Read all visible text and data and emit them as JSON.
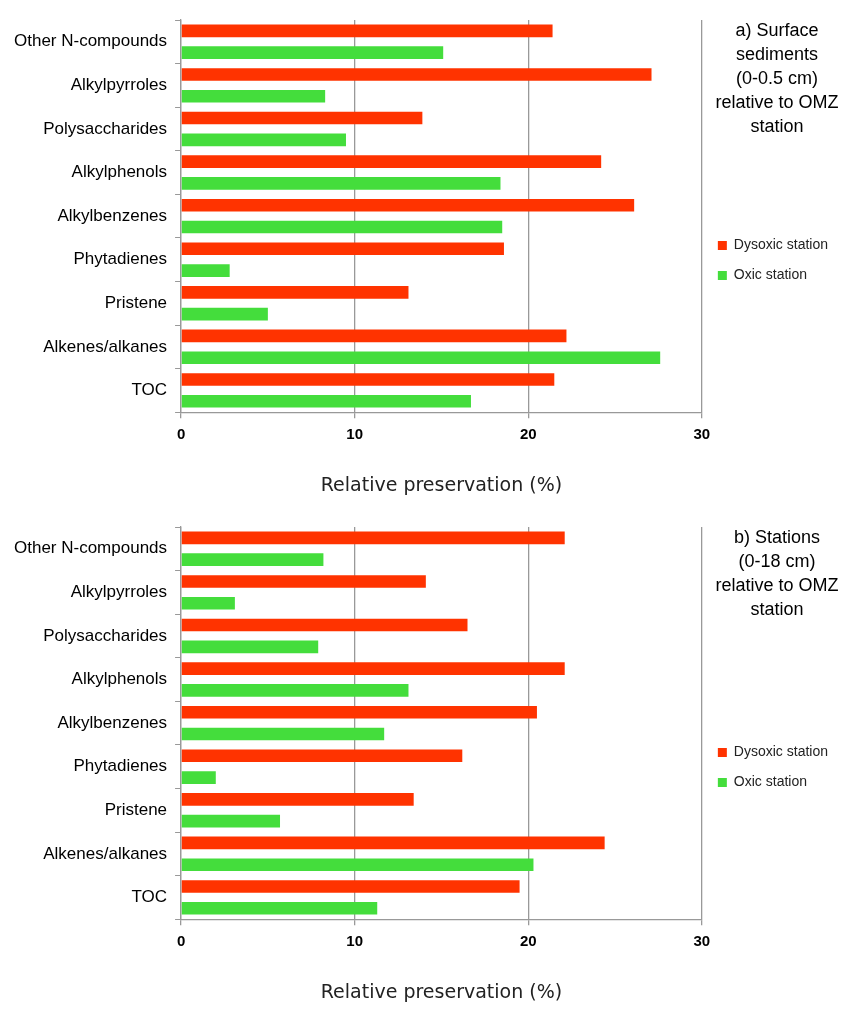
{
  "chart_data": [
    {
      "type": "bar",
      "orientation": "horizontal",
      "title": "a) Surface sediments (0-0.5 cm) relative to OMZ station",
      "xlabel": "Relative preservation (%)",
      "categories": [
        "Other N-compounds",
        "Alkylpyrroles",
        "Polysaccharides",
        "Alkylphenols",
        "Alkylbenzenes",
        "Phytadienes",
        "Pristene",
        "Alkenes/alkanes",
        "TOC"
      ],
      "series": [
        {
          "name": "Dysoxic station",
          "color": "#ff3300",
          "values": [
            21.4,
            27.1,
            13.9,
            24.2,
            26.1,
            18.6,
            13.1,
            22.2,
            21.5
          ]
        },
        {
          "name": "Oxic station",
          "color": "#44dd3c",
          "values": [
            15.1,
            8.3,
            9.5,
            18.4,
            18.5,
            2.8,
            5.0,
            27.6,
            16.7
          ]
        }
      ],
      "xlim": [
        0,
        30
      ],
      "xticks": [
        0,
        10,
        20,
        30
      ],
      "grid": "x",
      "legend": "right"
    },
    {
      "type": "bar",
      "orientation": "horizontal",
      "title": "b) Stations (0-18 cm) relative to OMZ station",
      "xlabel": "Relative preservation (%)",
      "categories": [
        "Other N-compounds",
        "Alkylpyrroles",
        "Polysaccharides",
        "Alkylphenols",
        "Alkylbenzenes",
        "Phytadienes",
        "Pristene",
        "Alkenes/alkanes",
        "TOC"
      ],
      "series": [
        {
          "name": "Dysoxic station",
          "color": "#ff3300",
          "values": [
            22.1,
            14.1,
            16.5,
            22.1,
            20.5,
            16.2,
            13.4,
            24.4,
            19.5
          ]
        },
        {
          "name": "Oxic station",
          "color": "#44dd3c",
          "values": [
            8.2,
            3.1,
            7.9,
            13.1,
            11.7,
            2.0,
            5.7,
            20.3,
            11.3
          ]
        }
      ],
      "xlim": [
        0,
        30
      ],
      "xticks": [
        0,
        10,
        20,
        30
      ],
      "grid": "x",
      "legend": "right"
    }
  ]
}
